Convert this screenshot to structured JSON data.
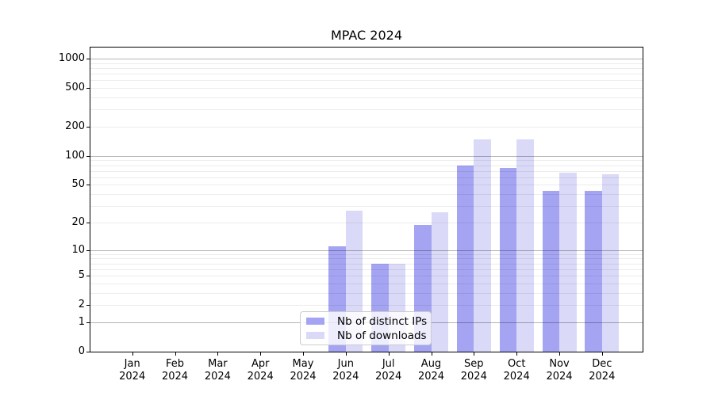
{
  "title": "MPAC 2024",
  "chart_data": {
    "type": "bar",
    "title": "MPAC 2024",
    "categories": [
      "Jan",
      "Feb",
      "Mar",
      "Apr",
      "May",
      "Jun",
      "Jul",
      "Aug",
      "Sep",
      "Oct",
      "Nov",
      "Dec"
    ],
    "year_label": "2024",
    "series": [
      {
        "name": "Nb of distinct IPs",
        "color": "#a4a4f2",
        "values": [
          0,
          0,
          0,
          0,
          0,
          11,
          7,
          19,
          80,
          75,
          43,
          43
        ]
      },
      {
        "name": "Nb of downloads",
        "color": "#dadaf8",
        "values": [
          0,
          0,
          0,
          0,
          0,
          27,
          7,
          26,
          147,
          147,
          67,
          65
        ]
      }
    ],
    "xlabel": "",
    "ylabel": "",
    "yscale": "log1p",
    "ylim": [
      0,
      1300
    ],
    "yticks": [
      0,
      1,
      2,
      5,
      10,
      20,
      50,
      100,
      200,
      500,
      1000
    ],
    "grid": {
      "on": true,
      "major": [
        1,
        10,
        100,
        1000
      ],
      "minor": [
        2,
        3,
        4,
        5,
        6,
        7,
        8,
        9,
        20,
        30,
        40,
        50,
        60,
        70,
        80,
        90,
        200,
        300,
        400,
        500,
        600,
        700,
        800,
        900
      ]
    },
    "legend": {
      "position": "lower center",
      "entries": [
        "Nb of distinct IPs",
        "Nb of downloads"
      ]
    }
  }
}
